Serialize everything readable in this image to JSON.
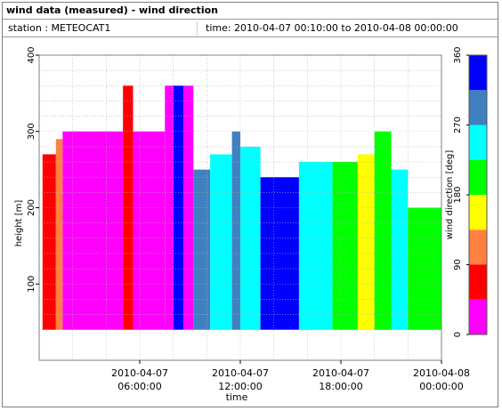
{
  "header": {
    "title": "wind data (measured) - wind direction",
    "station": "station : METEOCAT1",
    "time_range": "time: 2010-04-07 00:10:00 to 2010-04-08 00:00:00"
  },
  "colors": {
    "frame": "#7f7f7f",
    "grid": "#b0b0b0",
    "bands": [
      "#ff00ff",
      "#ff0000",
      "#ff8040",
      "#ffff00",
      "#00ff00",
      "#00ffff",
      "#4080c0",
      "#0000ff"
    ]
  },
  "chart_data": {
    "type": "heatmap",
    "title": "",
    "xlabel": "time",
    "ylabel": "height [m]",
    "xlim": [
      0,
      24
    ],
    "ylim": [
      0,
      400
    ],
    "grid": true,
    "x_ticks": [
      {
        "value": 6,
        "line1": "2010-04-07",
        "line2": "06:00:00"
      },
      {
        "value": 12,
        "line1": "2010-04-07",
        "line2": "12:00:00"
      },
      {
        "value": 18,
        "line1": "2010-04-07",
        "line2": "18:00:00"
      },
      {
        "value": 24,
        "line1": "2010-04-08",
        "line2": "00:00:00"
      }
    ],
    "y_ticks": [
      100,
      200,
      300,
      400
    ],
    "colorbar": {
      "label": "wind direction [deg]",
      "range": [
        0,
        360
      ],
      "tick_values": [
        0,
        90,
        180,
        270,
        360
      ],
      "tick_labels": [
        "0",
        "90",
        "180",
        "270",
        "360"
      ],
      "bands": [
        0,
        45,
        90,
        135,
        180,
        225,
        270,
        315,
        360
      ]
    },
    "data_height_range": [
      40,
      360
    ],
    "segments": [
      {
        "from": 0.2,
        "to": 1.0,
        "top": 270,
        "dir": 67
      },
      {
        "from": 1.0,
        "to": 1.4,
        "top": 290,
        "dir": 112
      },
      {
        "from": 1.4,
        "to": 5.0,
        "top": 300,
        "dir": 22
      },
      {
        "from": 5.0,
        "to": 5.6,
        "top": 360,
        "dir": 67
      },
      {
        "from": 5.6,
        "to": 7.5,
        "top": 300,
        "dir": 22
      },
      {
        "from": 7.5,
        "to": 8.0,
        "top": 360,
        "dir": 22
      },
      {
        "from": 8.0,
        "to": 8.6,
        "top": 360,
        "dir": 337
      },
      {
        "from": 8.6,
        "to": 9.2,
        "top": 360,
        "dir": 22
      },
      {
        "from": 9.2,
        "to": 10.2,
        "top": 250,
        "dir": 292
      },
      {
        "from": 10.2,
        "to": 11.5,
        "top": 270,
        "dir": 248
      },
      {
        "from": 11.5,
        "to": 12.0,
        "top": 300,
        "dir": 292
      },
      {
        "from": 12.0,
        "to": 13.2,
        "top": 280,
        "dir": 248
      },
      {
        "from": 13.2,
        "to": 15.5,
        "top": 240,
        "dir": 337
      },
      {
        "from": 15.5,
        "to": 17.5,
        "top": 260,
        "dir": 248
      },
      {
        "from": 17.5,
        "to": 19.0,
        "top": 260,
        "dir": 203
      },
      {
        "from": 19.0,
        "to": 20.0,
        "top": 270,
        "dir": 158
      },
      {
        "from": 20.0,
        "to": 21.0,
        "top": 300,
        "dir": 180
      },
      {
        "from": 21.0,
        "to": 22.0,
        "top": 250,
        "dir": 248
      },
      {
        "from": 22.0,
        "to": 24.0,
        "top": 200,
        "dir": 203
      }
    ]
  }
}
